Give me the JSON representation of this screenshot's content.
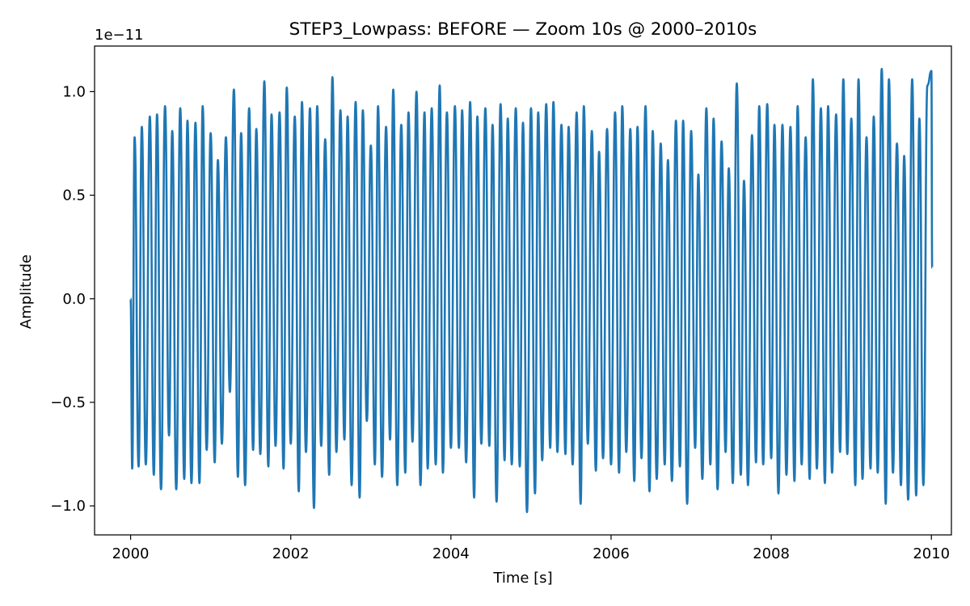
{
  "chart_data": {
    "type": "line",
    "title": "STEP3_Lowpass: BEFORE — Zoom 10s @ 2000–2010s",
    "xlabel": "Time [s]",
    "ylabel": "Amplitude",
    "offset_label": "1e−11",
    "xlim": [
      1999.55,
      2010.25
    ],
    "ylim": [
      -1.14e-11,
      1.22e-11
    ],
    "grid": false,
    "line_color": "#1f77b4",
    "x_ticks": [
      2000,
      2002,
      2004,
      2006,
      2008,
      2010
    ],
    "x_tick_labels": [
      "2000",
      "2002",
      "2004",
      "2006",
      "2008",
      "2010"
    ],
    "y_ticks": [
      -1e-11,
      -5e-12,
      0.0,
      5e-12,
      1e-11
    ],
    "y_tick_labels": [
      "−1.0",
      "−0.5",
      "0.0",
      "0.5",
      "1.0"
    ],
    "series": [
      {
        "peaks_t": [
          2000.05,
          2000.14,
          2000.24,
          2000.33,
          2000.43,
          2000.52,
          2000.62,
          2000.71,
          2000.81,
          2000.9,
          2001.0,
          2001.09,
          2001.19,
          2001.29,
          2001.38,
          2001.48,
          2001.57,
          2001.67,
          2001.76,
          2001.86,
          2001.95,
          2002.05,
          2002.14,
          2002.24,
          2002.33,
          2002.43,
          2002.52,
          2002.62,
          2002.71,
          2002.81,
          2002.9,
          2003.0,
          2003.09,
          2003.19,
          2003.28,
          2003.38,
          2003.47,
          2003.57,
          2003.67,
          2003.76,
          2003.86,
          2003.95,
          2004.05,
          2004.14,
          2004.24,
          2004.33,
          2004.43,
          2004.52,
          2004.62,
          2004.71,
          2004.81,
          2004.9,
          2005.0,
          2005.09,
          2005.19,
          2005.28,
          2005.38,
          2005.47,
          2005.57,
          2005.66,
          2005.76,
          2005.85,
          2005.95,
          2006.05,
          2006.14,
          2006.24,
          2006.33,
          2006.43,
          2006.52,
          2006.62,
          2006.71,
          2006.81,
          2006.9,
          2007.0,
          2007.09,
          2007.19,
          2007.28,
          2007.38,
          2007.47,
          2007.57,
          2007.66,
          2007.76,
          2007.85,
          2007.95,
          2008.04,
          2008.14,
          2008.24,
          2008.33,
          2008.43,
          2008.52,
          2008.62,
          2008.71,
          2008.81,
          2008.9,
          2009.0,
          2009.09,
          2009.19,
          2009.28,
          2009.38,
          2009.47,
          2009.57,
          2009.66,
          2009.76,
          2009.85,
          2009.95
        ],
        "peaks_v": [
          7.8e-12,
          8.3e-12,
          8.8e-12,
          8.9e-12,
          9.3e-12,
          8.1e-12,
          9.2e-12,
          8.6e-12,
          8.5e-12,
          9.3e-12,
          8e-12,
          6.7e-12,
          7.8e-12,
          1.01e-11,
          8e-12,
          9.2e-12,
          8.2e-12,
          1.05e-11,
          8.9e-12,
          9e-12,
          1.02e-11,
          8.8e-12,
          9.5e-12,
          9.2e-12,
          9.3e-12,
          7.7e-12,
          1.07e-11,
          9.1e-12,
          8.8e-12,
          9.5e-12,
          9.1e-12,
          7.4e-12,
          9.3e-12,
          8.3e-12,
          1.01e-11,
          8.4e-12,
          9e-12,
          1e-11,
          9e-12,
          9.2e-12,
          1.03e-11,
          9e-12,
          9.3e-12,
          9.1e-12,
          9.5e-12,
          8.8e-12,
          9.2e-12,
          8.4e-12,
          9.4e-12,
          8.7e-12,
          9.2e-12,
          8.5e-12,
          9.2e-12,
          9e-12,
          9.4e-12,
          9.5e-12,
          8.4e-12,
          8.3e-12,
          9e-12,
          9.3e-12,
          8.1e-12,
          7.1e-12,
          8.2e-12,
          9e-12,
          9.3e-12,
          8.2e-12,
          8.3e-12,
          9.3e-12,
          8.1e-12,
          7.5e-12,
          6.7e-12,
          8.6e-12,
          8.6e-12,
          8.1e-12,
          6e-12,
          9.2e-12,
          8.7e-12,
          7.6e-12,
          6.3e-12,
          1.04e-11,
          5.7e-12,
          7.9e-12,
          9.3e-12,
          9.4e-12,
          8.4e-12,
          8.4e-12,
          8.3e-12,
          9.3e-12,
          7.8e-12,
          1.06e-11,
          9.2e-12,
          9.3e-12,
          8.9e-12,
          1.06e-11,
          8.7e-12,
          1.06e-11,
          7.8e-12,
          8.8e-12,
          1.11e-11,
          1.06e-11,
          7.5e-12,
          6.9e-12,
          1.06e-11,
          8.7e-12,
          1.03e-11
        ],
        "troughs_t": [
          2000.02,
          2000.1,
          2000.19,
          2000.29,
          2000.38,
          2000.48,
          2000.57,
          2000.67,
          2000.76,
          2000.86,
          2000.95,
          2001.05,
          2001.14,
          2001.24,
          2001.34,
          2001.43,
          2001.53,
          2001.62,
          2001.72,
          2001.81,
          2001.91,
          2002.0,
          2002.1,
          2002.19,
          2002.29,
          2002.38,
          2002.48,
          2002.57,
          2002.67,
          2002.76,
          2002.86,
          2002.95,
          2003.05,
          2003.14,
          2003.24,
          2003.33,
          2003.43,
          2003.52,
          2003.62,
          2003.71,
          2003.81,
          2003.9,
          2004.0,
          2004.1,
          2004.19,
          2004.29,
          2004.38,
          2004.48,
          2004.57,
          2004.67,
          2004.76,
          2004.86,
          2004.95,
          2005.05,
          2005.14,
          2005.24,
          2005.33,
          2005.43,
          2005.52,
          2005.62,
          2005.71,
          2005.81,
          2005.9,
          2006.0,
          2006.1,
          2006.19,
          2006.29,
          2006.38,
          2006.48,
          2006.57,
          2006.67,
          2006.76,
          2006.86,
          2006.95,
          2007.05,
          2007.14,
          2007.24,
          2007.33,
          2007.43,
          2007.52,
          2007.62,
          2007.71,
          2007.81,
          2007.9,
          2008.0,
          2008.09,
          2008.19,
          2008.29,
          2008.38,
          2008.48,
          2008.57,
          2008.67,
          2008.76,
          2008.86,
          2008.95,
          2009.05,
          2009.14,
          2009.24,
          2009.33,
          2009.43,
          2009.52,
          2009.62,
          2009.71,
          2009.81,
          2009.9
        ],
        "troughs_v": [
          -8.2e-12,
          -8.1e-12,
          -8e-12,
          -8.5e-12,
          -9.2e-12,
          -6.6e-12,
          -9.2e-12,
          -8.7e-12,
          -8.9e-12,
          -8.9e-12,
          -7.3e-12,
          -7.9e-12,
          -7e-12,
          -4.5e-12,
          -8.6e-12,
          -9e-12,
          -7.3e-12,
          -7.5e-12,
          -8.1e-12,
          -7.1e-12,
          -8.2e-12,
          -7e-12,
          -9.3e-12,
          -7.4e-12,
          -1.01e-11,
          -7.1e-12,
          -8.5e-12,
          -7.4e-12,
          -6.8e-12,
          -9e-12,
          -9.6e-12,
          -5.9e-12,
          -8e-12,
          -8.6e-12,
          -6.8e-12,
          -9e-12,
          -8.4e-12,
          -6.9e-12,
          -9e-12,
          -8.2e-12,
          -8e-12,
          -8.4e-12,
          -7.2e-12,
          -7.2e-12,
          -7.9e-12,
          -9.6e-12,
          -7e-12,
          -7.1e-12,
          -9.8e-12,
          -7.8e-12,
          -8e-12,
          -8.1e-12,
          -1.03e-11,
          -9.4e-12,
          -7.8e-12,
          -7.2e-12,
          -7.4e-12,
          -7.5e-12,
          -8e-12,
          -9.9e-12,
          -7e-12,
          -8.3e-12,
          -7.7e-12,
          -8e-12,
          -8.4e-12,
          -7.4e-12,
          -8.8e-12,
          -7.7e-12,
          -9.3e-12,
          -8.7e-12,
          -8e-12,
          -8.8e-12,
          -8.1e-12,
          -9.9e-12,
          -7.2e-12,
          -8.7e-12,
          -8e-12,
          -9.2e-12,
          -7.4e-12,
          -8.9e-12,
          -8.5e-12,
          -9e-12,
          -7.9e-12,
          -8e-12,
          -7.7e-12,
          -9.4e-12,
          -8.5e-12,
          -8.8e-12,
          -8e-12,
          -8.7e-12,
          -8.2e-12,
          -8.9e-12,
          -8.4e-12,
          -7.4e-12,
          -7.5e-12,
          -9e-12,
          -8.7e-12,
          -8.2e-12,
          -8.4e-12,
          -9.9e-12,
          -8.4e-12,
          -9e-12,
          -9.7e-12,
          -9.5e-12,
          -9e-12
        ],
        "start_value": 0.0,
        "end_value": 1.5e-12
      }
    ]
  }
}
